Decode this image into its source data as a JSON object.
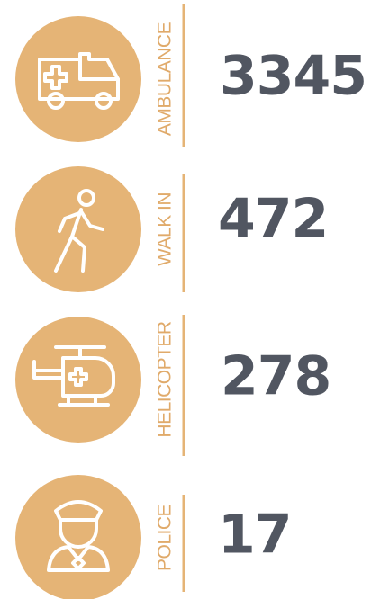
{
  "items": [
    {
      "label": "AMBULANCE",
      "value": 3345
    },
    {
      "label": "WALK IN",
      "value": 472
    },
    {
      "label": "HELICOPTER",
      "value": 278
    },
    {
      "label": "POLICE",
      "value": 17
    }
  ]
}
